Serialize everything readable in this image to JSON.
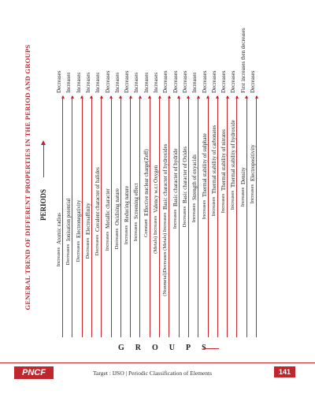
{
  "header": {
    "title": "GENERAL TREND OF DIFFERENT PROPERTIES IN THE PERIOD AND GROUPS",
    "periods_label": "PERIODS",
    "groups_label": "GROUPS"
  },
  "rows": [
    {
      "property": "Atomic radius",
      "period": "Decreases",
      "group": "Increases"
    },
    {
      "property": "Ionisation potential",
      "period": "Increases",
      "group": "Decreases"
    },
    {
      "property": "Electronegativity",
      "period": "Increases",
      "group": "Decreases"
    },
    {
      "property": "Electroaffinity",
      "period": "Increases",
      "group": "Decreases"
    },
    {
      "property": "Covalent character of halides",
      "period": "Increases",
      "group": "Decreases"
    },
    {
      "property": "Metallic character",
      "period": "Decreases",
      "group": "Increases"
    },
    {
      "property": "Oxidising nature",
      "period": "Increases",
      "group": "Decreases"
    },
    {
      "property": "Reducing nature",
      "period": "Decreases",
      "group": "Increases"
    },
    {
      "property": "Screening effect",
      "period": "Increases",
      "group": "Increases"
    },
    {
      "property": "Effective nuclear charge(Zeff)",
      "period": "Increases",
      "group": "Constant"
    },
    {
      "property": "Valency w.r.t Oxygen",
      "period": "Increases",
      "group": "(Metals) Increases"
    },
    {
      "property": "Basic character of hydroxides",
      "period": "Decreases",
      "group": "(Nonmetal)Decreases (Metals) Increases"
    },
    {
      "property": "Basic character of hydride",
      "period": "Decreases",
      "group": "Increases"
    },
    {
      "property": "Basic character of Oxides",
      "period": "Decreases",
      "group": "Decreases"
    },
    {
      "property": "Strength of oxyacids",
      "period": "Increases",
      "group": "Increases"
    },
    {
      "property": "Thermal stability of sulphate",
      "period": "Decreases",
      "group": "Increases"
    },
    {
      "property": "Thermal stability of carbonates",
      "period": "Decreases",
      "group": "Increases"
    },
    {
      "property": "Thermal stability of nitrates",
      "period": "Decreases",
      "group": "Increases"
    },
    {
      "property": "Thermal stability of hydroxide",
      "period": "Decreases",
      "group": "Increases"
    },
    {
      "property": "Density",
      "period": "First increases then decreases",
      "group": "Increases"
    },
    {
      "property": "Electropositivity",
      "period": "Decreases",
      "group": "Increases"
    }
  ],
  "footer": {
    "brand": "PNCF",
    "text": "Target : IJSO | Periodic Classification of Elements",
    "page": "141"
  }
}
